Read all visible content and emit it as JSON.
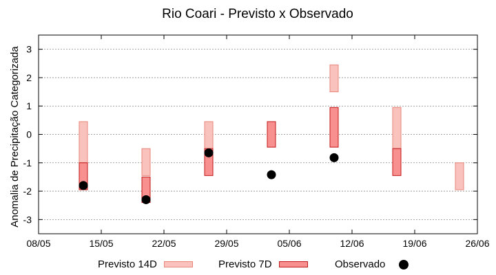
{
  "chart_data": {
    "type": "range",
    "title": "Rio Coari - Previsto x Observado",
    "xlabel": "",
    "ylabel": "Anomalia de Precipitação Categorizada",
    "ylim": [
      -3.5,
      3.5
    ],
    "yticks": [
      3,
      2,
      1,
      0,
      -1,
      -2,
      -3
    ],
    "ytick_labels": [
      "3",
      "2",
      "1",
      "0",
      "-1",
      "-2",
      "-3"
    ],
    "xticks": [
      "08/05",
      "15/05",
      "22/05",
      "29/05",
      "05/06",
      "12/06",
      "19/06",
      "26/06"
    ],
    "xlim": [
      "2020-05-08",
      "2020-06-26"
    ],
    "grid": true,
    "legend_position": "bottom",
    "series": [
      {
        "name": "Previsto 14D",
        "color": "#f9c2bc",
        "ranges": [
          {
            "x": "2020-05-13",
            "low": -1.0,
            "high": 0.45
          },
          {
            "x": "2020-05-20",
            "low": -1.45,
            "high": -0.5
          },
          {
            "x": "2020-05-27",
            "low": -0.5,
            "high": 0.45
          },
          {
            "x": "2020-06-10",
            "low": 1.5,
            "high": 2.45
          },
          {
            "x": "2020-06-17",
            "low": -0.5,
            "high": 0.95
          },
          {
            "x": "2020-06-24",
            "low": -1.95,
            "high": -1.0
          }
        ]
      },
      {
        "name": "Previsto 7D",
        "color": "#f99090",
        "ranges": [
          {
            "x": "2020-05-13",
            "low": -1.95,
            "high": -1.0
          },
          {
            "x": "2020-05-20",
            "low": -2.4,
            "high": -1.5
          },
          {
            "x": "2020-05-27",
            "low": -1.45,
            "high": -0.5
          },
          {
            "x": "2020-06-03",
            "low": -0.45,
            "high": 0.45
          },
          {
            "x": "2020-06-10",
            "low": -0.45,
            "high": 0.95
          },
          {
            "x": "2020-06-17",
            "low": -1.45,
            "high": -0.5
          }
        ]
      },
      {
        "name": "Observado",
        "color": "#000000",
        "points": [
          {
            "x": "2020-05-13",
            "y": -1.8
          },
          {
            "x": "2020-05-20",
            "y": -2.3
          },
          {
            "x": "2020-05-27",
            "y": -0.65
          },
          {
            "x": "2020-06-03",
            "y": -1.42
          },
          {
            "x": "2020-06-10",
            "y": -0.82
          }
        ]
      }
    ]
  }
}
